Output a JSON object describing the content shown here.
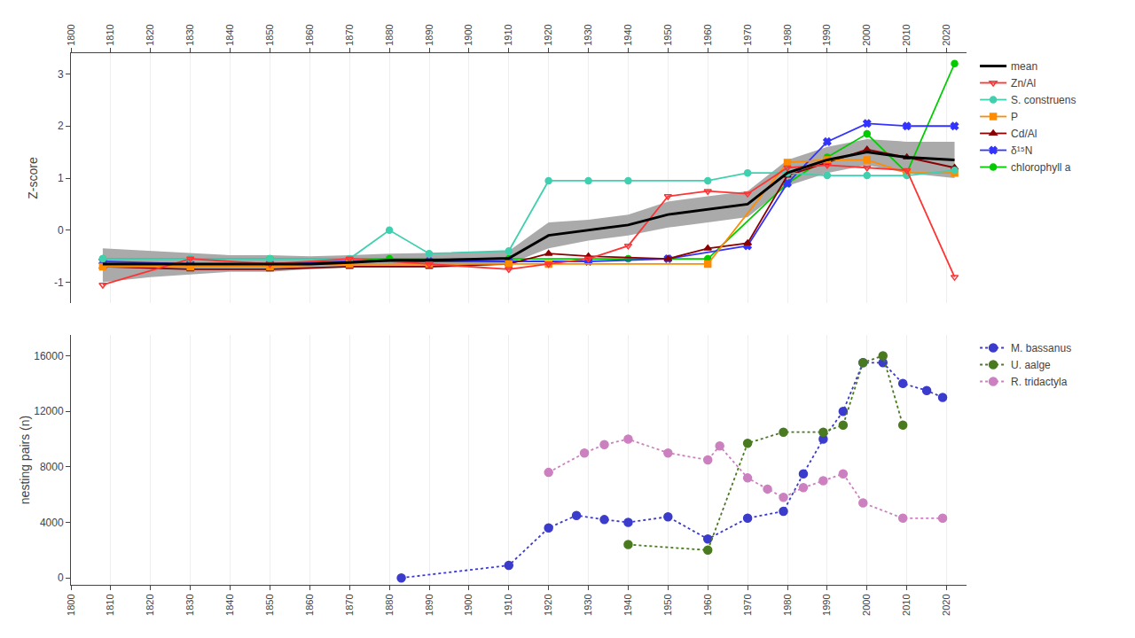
{
  "chart_data": [
    {
      "type": "line",
      "ylabel": "Z-score",
      "xlim": [
        1800,
        2025
      ],
      "xticks": [
        1800,
        1810,
        1820,
        1830,
        1840,
        1850,
        1860,
        1870,
        1880,
        1890,
        1900,
        1910,
        1920,
        1930,
        1940,
        1950,
        1960,
        1970,
        1980,
        1990,
        2000,
        2010,
        2020
      ],
      "ylim": [
        -1.4,
        3.4
      ],
      "yticks": [
        -1,
        0,
        1,
        2,
        3
      ],
      "grid": "x",
      "legend": "outside right",
      "ci": {
        "color": "#aaaaaa",
        "x": [
          1808,
          1820,
          1830,
          1840,
          1850,
          1860,
          1870,
          1880,
          1890,
          1900,
          1910,
          1920,
          1930,
          1940,
          1950,
          1960,
          1970,
          1980,
          1990,
          2000,
          2010,
          2022
        ],
        "lower": [
          -1.0,
          -0.9,
          -0.85,
          -0.8,
          -0.8,
          -0.75,
          -0.72,
          -0.72,
          -0.72,
          -0.7,
          -0.65,
          -0.35,
          -0.2,
          -0.1,
          0.05,
          0.15,
          0.25,
          0.85,
          1.1,
          1.25,
          1.1,
          1.0
        ],
        "upper": [
          -0.35,
          -0.4,
          -0.45,
          -0.48,
          -0.48,
          -0.5,
          -0.48,
          -0.45,
          -0.44,
          -0.42,
          -0.4,
          0.15,
          0.2,
          0.3,
          0.55,
          0.65,
          0.75,
          1.35,
          1.6,
          1.75,
          1.7,
          1.7
        ]
      },
      "series": [
        {
          "name": "chlorophyll a",
          "color": "#00cc00",
          "marker": "circle",
          "line_style": "solid",
          "x": [
            1808,
            1850,
            1880,
            1910,
            1940,
            1960,
            1980,
            1990,
            2000,
            2010,
            2022
          ],
          "values": [
            -0.55,
            -0.55,
            -0.55,
            -0.55,
            -0.55,
            -0.55,
            0.9,
            1.4,
            1.85,
            1.1,
            3.2
          ]
        },
        {
          "name": "δ¹⁵N",
          "color": "#3333ff",
          "marker": "x",
          "line_style": "solid",
          "x": [
            1808,
            1830,
            1850,
            1870,
            1890,
            1910,
            1930,
            1950,
            1970,
            1980,
            1990,
            2000,
            2010,
            2022
          ],
          "values": [
            -0.6,
            -0.65,
            -0.65,
            -0.6,
            -0.6,
            -0.6,
            -0.6,
            -0.55,
            -0.3,
            0.9,
            1.7,
            2.05,
            2.0,
            2.0
          ]
        },
        {
          "name": "Cd/Al",
          "color": "#8b0000",
          "marker": "triangle-up",
          "line_style": "solid",
          "x": [
            1808,
            1830,
            1850,
            1870,
            1890,
            1910,
            1920,
            1930,
            1950,
            1960,
            1970,
            1980,
            1990,
            2000,
            2010,
            2022
          ],
          "values": [
            -0.7,
            -0.75,
            -0.75,
            -0.7,
            -0.7,
            -0.65,
            -0.45,
            -0.5,
            -0.55,
            -0.35,
            -0.25,
            1.05,
            1.3,
            1.55,
            1.4,
            1.2
          ]
        },
        {
          "name": "P",
          "color": "#ff8c00",
          "marker": "square",
          "line_style": "solid",
          "x": [
            1808,
            1830,
            1850,
            1870,
            1890,
            1910,
            1920,
            1960,
            1980,
            1990,
            2000,
            2010,
            2022
          ],
          "values": [
            -0.7,
            -0.7,
            -0.7,
            -0.65,
            -0.65,
            -0.65,
            -0.65,
            -0.65,
            1.3,
            1.35,
            1.35,
            1.1,
            1.1
          ]
        },
        {
          "name": "S. construens",
          "color": "#40d0b0",
          "marker": "circle",
          "line_style": "solid",
          "x": [
            1808,
            1830,
            1850,
            1870,
            1880,
            1890,
            1910,
            1920,
            1930,
            1940,
            1960,
            1970,
            1980,
            1990,
            2000,
            2010,
            2022
          ],
          "values": [
            -0.55,
            -0.55,
            -0.55,
            -0.55,
            0.0,
            -0.45,
            -0.4,
            0.95,
            0.95,
            0.95,
            0.95,
            1.1,
            1.1,
            1.05,
            1.05,
            1.05,
            1.15
          ]
        },
        {
          "name": "Zn/Al",
          "color": "#ff3333",
          "marker": "triangle-down-open",
          "line_style": "solid",
          "x": [
            1808,
            1830,
            1850,
            1870,
            1890,
            1910,
            1920,
            1930,
            1940,
            1950,
            1960,
            1970,
            1980,
            1990,
            2000,
            2010,
            2022
          ],
          "values": [
            -1.05,
            -0.55,
            -0.65,
            -0.55,
            -0.65,
            -0.75,
            -0.65,
            -0.55,
            -0.3,
            0.65,
            0.75,
            0.7,
            1.2,
            1.25,
            1.2,
            1.15,
            -0.9
          ]
        },
        {
          "name": "mean",
          "color": "#000000",
          "line_style": "solid",
          "x": [
            1808,
            1820,
            1830,
            1840,
            1850,
            1860,
            1870,
            1880,
            1890,
            1900,
            1910,
            1920,
            1930,
            1940,
            1950,
            1960,
            1970,
            1980,
            1990,
            2000,
            2010,
            2022
          ],
          "values": [
            -0.65,
            -0.65,
            -0.65,
            -0.65,
            -0.65,
            -0.65,
            -0.62,
            -0.58,
            -0.58,
            -0.56,
            -0.54,
            -0.1,
            0.0,
            0.1,
            0.3,
            0.4,
            0.5,
            1.1,
            1.35,
            1.5,
            1.4,
            1.35
          ]
        }
      ]
    },
    {
      "type": "line",
      "ylabel": "nesting pairs (n)",
      "xlim": [
        1800,
        2025
      ],
      "xticks": [
        1800,
        1810,
        1820,
        1830,
        1840,
        1850,
        1860,
        1870,
        1880,
        1890,
        1900,
        1910,
        1920,
        1930,
        1940,
        1950,
        1960,
        1970,
        1980,
        1990,
        2000,
        2010,
        2020
      ],
      "ylim": [
        -500,
        17500
      ],
      "yticks": [
        0,
        4000,
        8000,
        12000,
        16000
      ],
      "grid": "x",
      "legend": "outside right",
      "series": [
        {
          "name": "M. bassanus",
          "color": "#3b3bcc",
          "marker": "circle",
          "line_style": "dotted",
          "x": [
            1883,
            1910,
            1920,
            1927,
            1934,
            1940,
            1950,
            1960,
            1970,
            1979,
            1984,
            1989,
            1994,
            1999,
            2004,
            2009,
            2015,
            2019
          ],
          "values": [
            0,
            900,
            3600,
            4500,
            4200,
            4000,
            4400,
            2800,
            4300,
            4800,
            7500,
            10000,
            12000,
            15500,
            15500,
            14000,
            13500,
            13000
          ]
        },
        {
          "name": "U. aalge",
          "color": "#4a7a20",
          "marker": "circle",
          "line_style": "dotted",
          "x": [
            1940,
            1960,
            1970,
            1979,
            1989,
            1994,
            1999,
            2004,
            2009
          ],
          "values": [
            2400,
            2000,
            9700,
            10500,
            10500,
            11000,
            15500,
            16000,
            11000
          ]
        },
        {
          "name": "R. tridactyla",
          "color": "#cc80c0",
          "marker": "circle",
          "line_style": "dotted",
          "x": [
            1920,
            1929,
            1934,
            1940,
            1950,
            1960,
            1963,
            1970,
            1975,
            1979,
            1984,
            1989,
            1994,
            1999,
            2009,
            2019
          ],
          "values": [
            7600,
            9000,
            9600,
            10000,
            9000,
            8500,
            9500,
            7200,
            6400,
            5800,
            6500,
            7000,
            7500,
            5400,
            4300,
            4300
          ]
        }
      ]
    }
  ]
}
